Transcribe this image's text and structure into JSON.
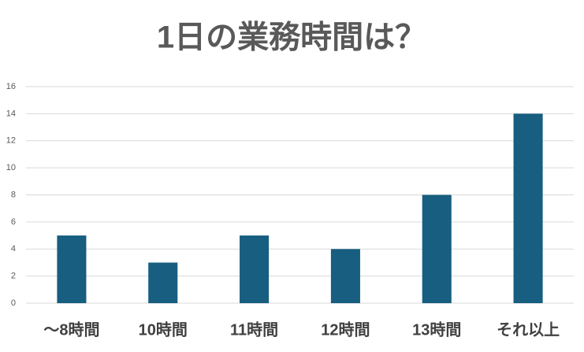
{
  "chart_data": {
    "type": "bar",
    "title": "1日の業務時間は？",
    "categories": [
      "〜8時間",
      "10時間",
      "11時間",
      "12時間",
      "13時間",
      "それ以上"
    ],
    "values": [
      5,
      3,
      5,
      4,
      8,
      14
    ],
    "color": "#175e80",
    "ylim": [
      0,
      16
    ],
    "yticks": [
      0,
      2,
      4,
      6,
      8,
      10,
      12,
      14,
      16
    ],
    "grid": true
  }
}
